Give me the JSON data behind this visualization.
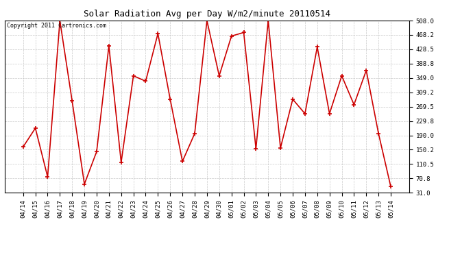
{
  "title": "Solar Radiation Avg per Day W/m2/minute 20110514",
  "copyright": "Copyright 2011 Cartronics.com",
  "dates": [
    "04/14",
    "04/15",
    "04/16",
    "04/17",
    "04/18",
    "04/19",
    "04/20",
    "04/21",
    "04/22",
    "04/23",
    "04/24",
    "04/25",
    "04/26",
    "04/27",
    "04/28",
    "04/29",
    "04/30",
    "05/01",
    "05/02",
    "05/03",
    "05/04",
    "05/05",
    "05/06",
    "05/07",
    "05/08",
    "05/09",
    "05/10",
    "05/11",
    "05/12",
    "05/13",
    "05/14"
  ],
  "values": [
    158,
    210,
    75,
    508,
    285,
    55,
    145,
    438,
    115,
    355,
    340,
    472,
    290,
    118,
    195,
    508,
    355,
    465,
    475,
    153,
    508,
    155,
    290,
    250,
    435,
    250,
    355,
    275,
    370,
    195,
    48
  ],
  "line_color": "#cc0000",
  "marker_color": "#cc0000",
  "bg_color": "#ffffff",
  "plot_bg_color": "#ffffff",
  "grid_color": "#bbbbbb",
  "title_fontsize": 9,
  "copyright_fontsize": 6,
  "tick_fontsize": 6.5,
  "ylim_min": 31.0,
  "ylim_max": 508.0,
  "yticks": [
    31.0,
    70.8,
    110.5,
    150.2,
    190.0,
    229.8,
    269.5,
    309.2,
    349.0,
    388.8,
    428.5,
    468.2,
    508.0
  ]
}
